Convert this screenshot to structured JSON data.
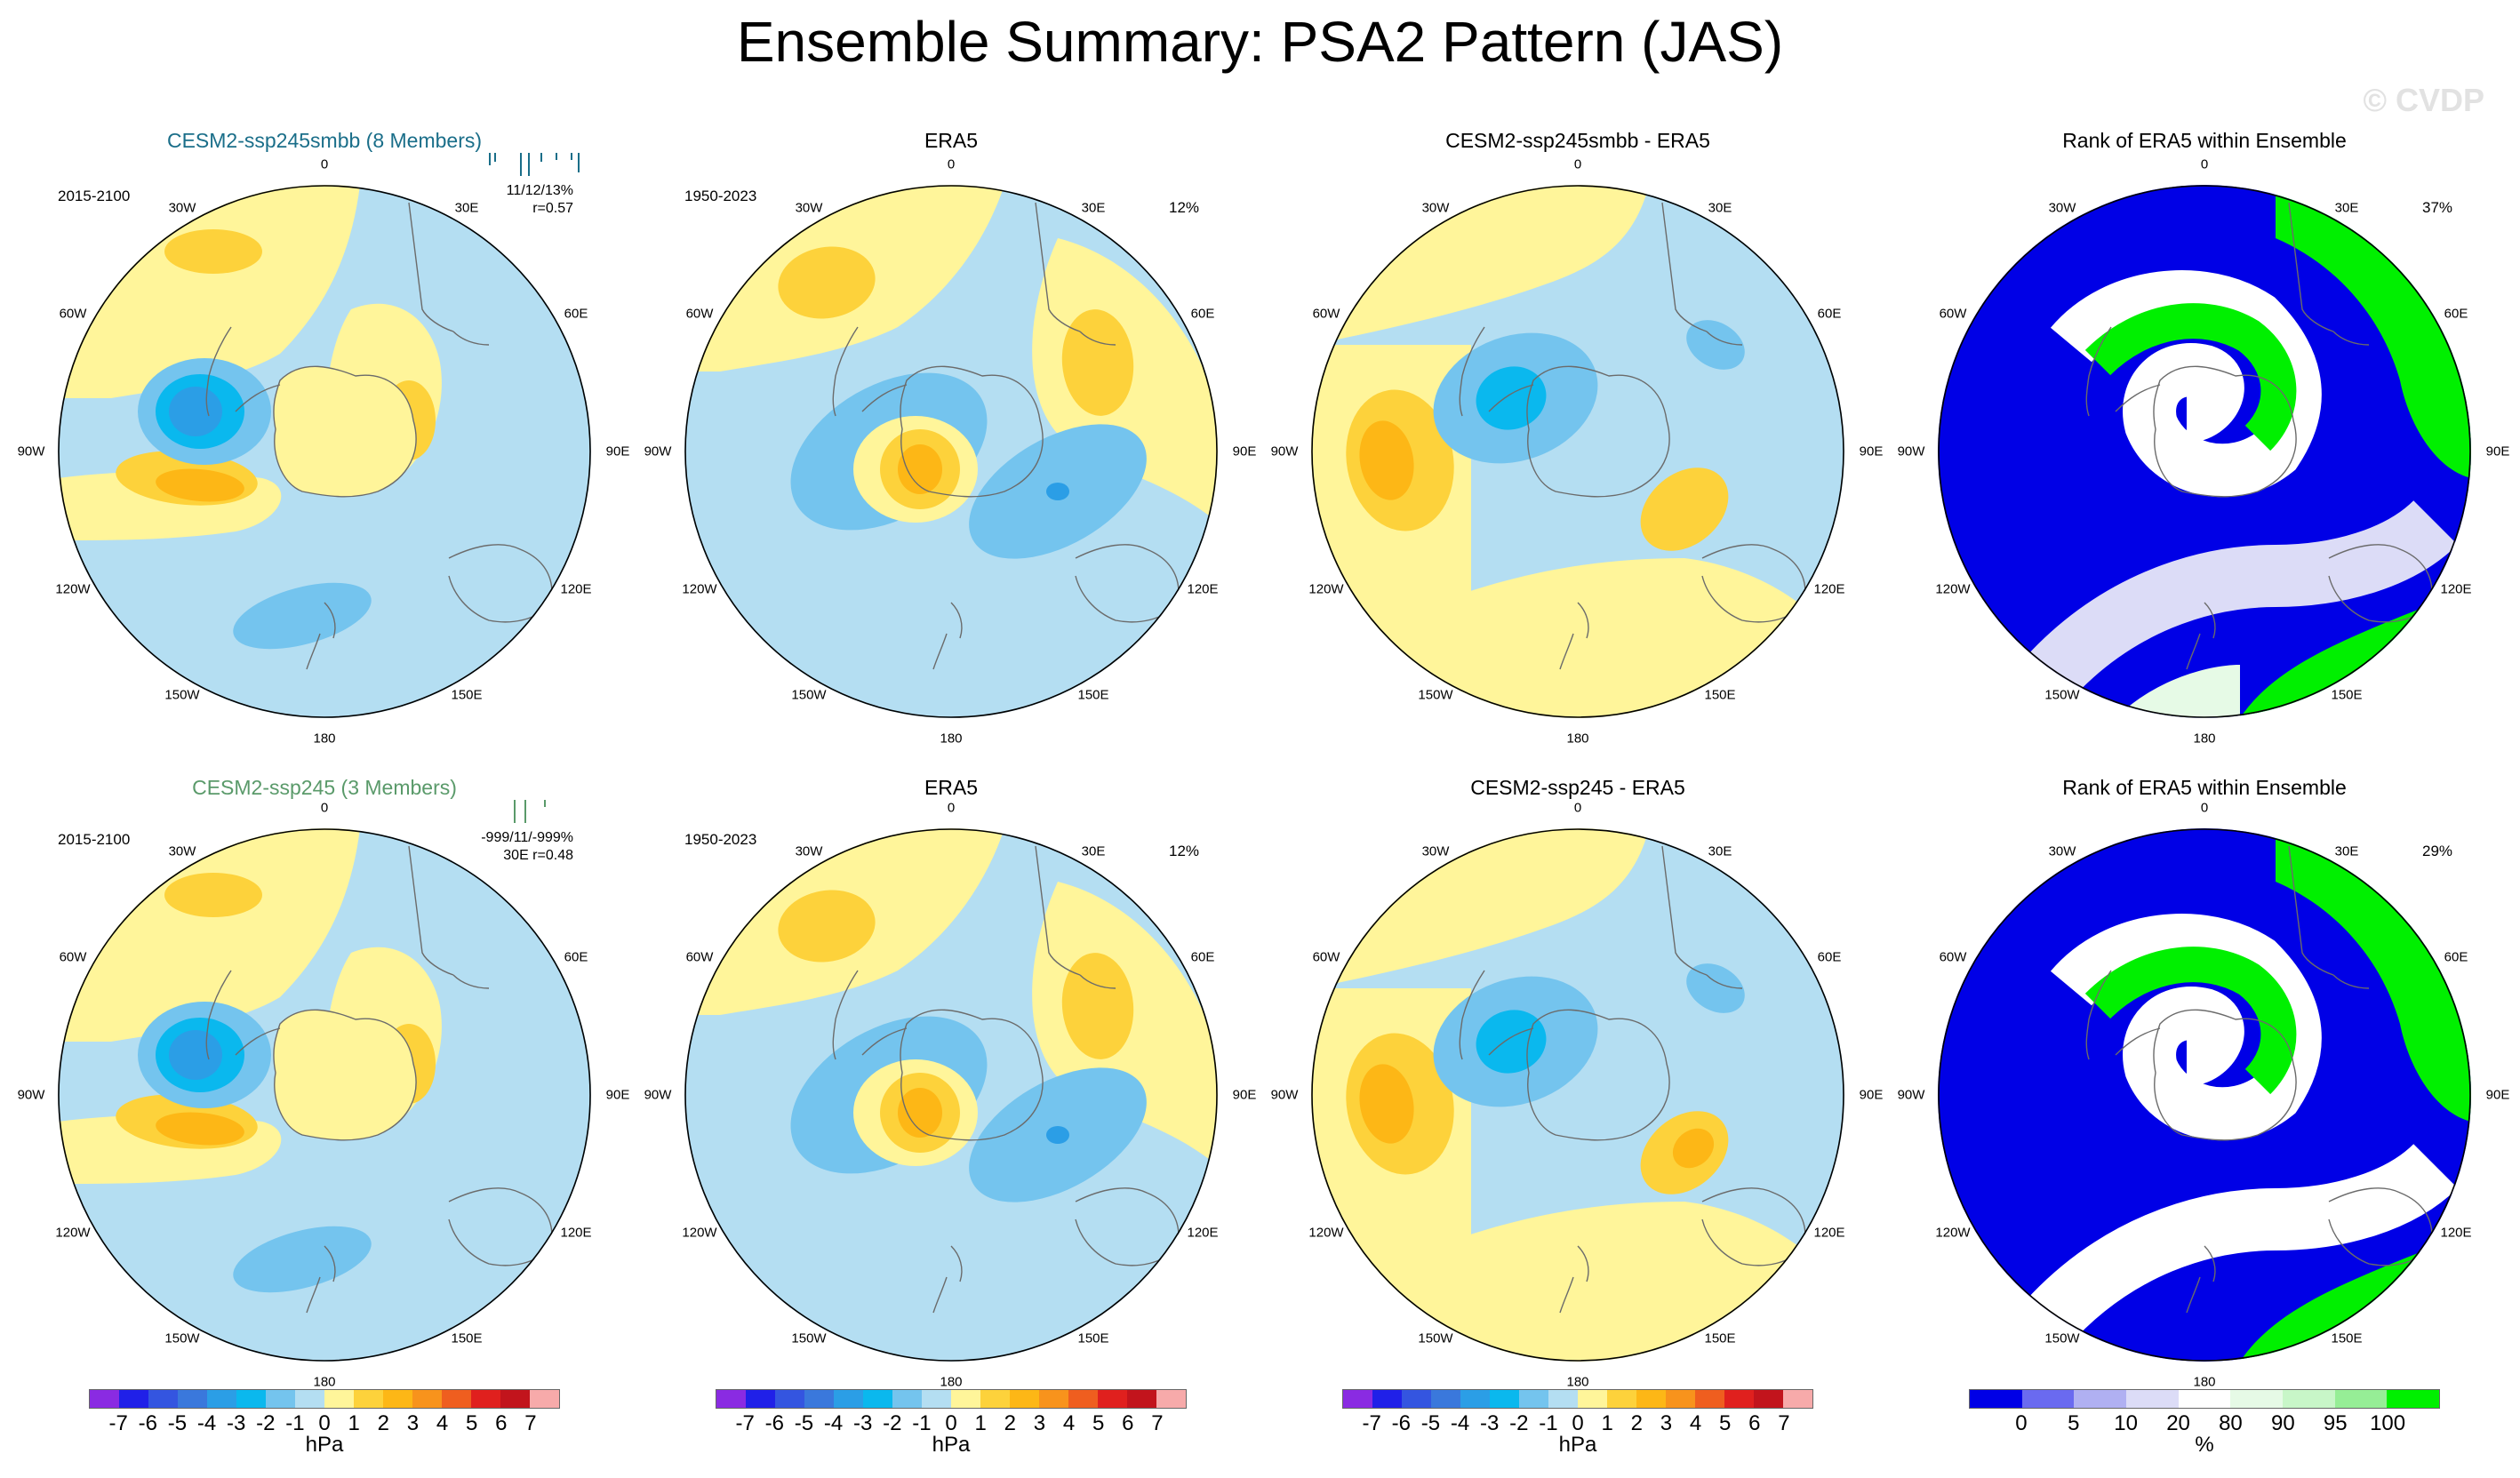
{
  "title": "Ensemble Summary: PSA2 Pattern (JAS)",
  "watermark": "© CVDP",
  "colors": {
    "ocean": "#b4def2",
    "land_line": "#6b6b6b",
    "title_row1": "#1a6e89",
    "title_row2": "#5a9a6a",
    "rank_blue": "#0000e6",
    "rank_green": "#00f000"
  },
  "longitude_labels": [
    "0",
    "30E",
    "60E",
    "90E",
    "120E",
    "150E",
    "180",
    "150W",
    "120W",
    "90W",
    "60W",
    "30W"
  ],
  "rows": [
    {
      "model_title": "CESM2-ssp245smbb (8 Members)",
      "model_period": "2015-2100",
      "model_stats_1": "11/12/13%",
      "model_stats_2": "r=0.57",
      "obs_title": "ERA5",
      "obs_period": "1950-2023",
      "obs_pct": "12%",
      "diff_title": "CESM2-ssp245smbb - ERA5",
      "rank_title": "Rank of ERA5 within Ensemble",
      "rank_pct": "37%"
    },
    {
      "model_title": "CESM2-ssp245 (3 Members)",
      "model_period": "2015-2100",
      "model_stats_1": "-999/11/-999%",
      "model_stats_2": "30E r=0.48",
      "obs_title": "ERA5",
      "obs_period": "1950-2023",
      "obs_pct": "12%",
      "diff_title": "CESM2-ssp245 - ERA5",
      "rank_title": "Rank of ERA5 within Ensemble",
      "rank_pct": "29%"
    }
  ],
  "colorbar_hpa": {
    "unit": "hPa",
    "labels": [
      "-7",
      "-6",
      "-5",
      "-4",
      "-3",
      "-2",
      "-1",
      "0",
      "1",
      "2",
      "3",
      "4",
      "5",
      "6",
      "7"
    ],
    "colors": [
      "#8a2be2",
      "#2020e8",
      "#3455e0",
      "#3a78dc",
      "#2b9ee6",
      "#0ab8ee",
      "#74c4ee",
      "#b4def2",
      "#fff59a",
      "#fdd23b",
      "#fdb716",
      "#f8931c",
      "#ef5e1f",
      "#e0201e",
      "#c2141c",
      "#f7aaaa"
    ]
  },
  "colorbar_rank": {
    "unit": "%",
    "labels": [
      "0",
      "5",
      "10",
      "20",
      "80",
      "90",
      "95",
      "100"
    ],
    "colors": [
      "#0000e6",
      "#6a6af0",
      "#b0b0f2",
      "#dcdcf7",
      "#ffffff",
      "#e6fae6",
      "#c8f6c8",
      "#96ee96",
      "#00f000"
    ]
  }
}
